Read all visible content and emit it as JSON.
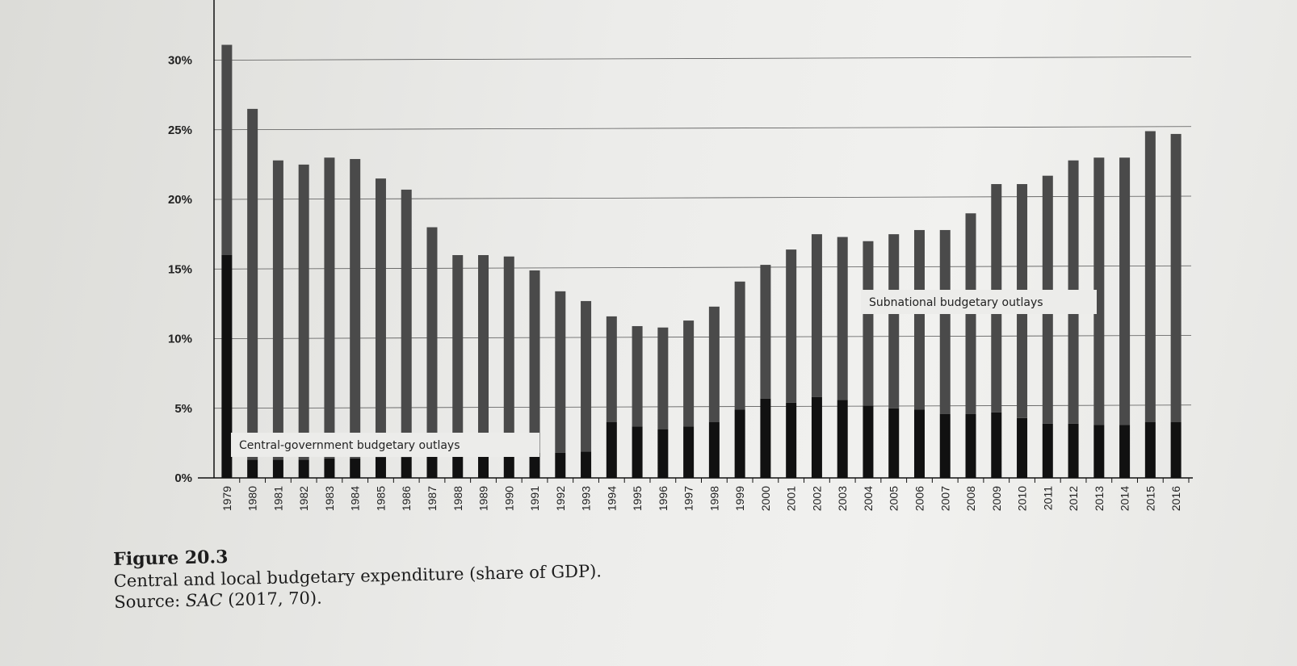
{
  "chart_data": {
    "type": "bar",
    "stacked": true,
    "categories": [
      "1979",
      "1980",
      "1981",
      "1982",
      "1983",
      "1984",
      "1985",
      "1986",
      "1987",
      "1988",
      "1989",
      "1990",
      "1991",
      "1992",
      "1993",
      "1994",
      "1995",
      "1996",
      "1997",
      "1998",
      "1999",
      "2000",
      "2001",
      "2002",
      "2003",
      "2004",
      "2005",
      "2006",
      "2007",
      "2008",
      "2009",
      "2010",
      "2011",
      "2012",
      "2013",
      "2014",
      "2015",
      "2016"
    ],
    "series": [
      {
        "name": "Central-government budgetary outlays",
        "color": "#111111",
        "values": [
          16.0,
          1.3,
          1.3,
          1.3,
          1.4,
          1.4,
          1.5,
          1.5,
          1.6,
          1.6,
          1.7,
          1.7,
          1.8,
          1.8,
          1.9,
          4.0,
          3.7,
          3.5,
          3.7,
          4.0,
          4.9,
          5.7,
          5.4,
          5.8,
          5.6,
          5.2,
          5.0,
          4.9,
          4.6,
          4.6,
          4.7,
          4.3,
          3.9,
          3.9,
          3.8,
          3.8,
          4.0,
          4.0
        ]
      },
      {
        "name": "Subnational budgetary outlays",
        "color": "#4a4a4a",
        "values": [
          15.1,
          25.2,
          21.5,
          21.2,
          21.6,
          21.5,
          20.0,
          19.2,
          16.4,
          14.4,
          14.3,
          14.2,
          13.1,
          11.6,
          10.8,
          7.6,
          7.2,
          7.3,
          7.6,
          8.3,
          9.2,
          9.6,
          11.0,
          11.7,
          11.7,
          11.8,
          12.5,
          12.9,
          13.2,
          14.4,
          16.4,
          16.8,
          17.8,
          18.9,
          19.2,
          19.2,
          20.9,
          20.7
        ]
      }
    ],
    "yticks": [
      "0%",
      "5%",
      "10%",
      "15%",
      "20%",
      "25%",
      "30%"
    ],
    "ylim": [
      0,
      32
    ],
    "grid": true
  },
  "caption": {
    "label": "Figure 20.3",
    "title": "Central and local budgetary expenditure (share of GDP).",
    "source_prefix": "Source: ",
    "source_italic": "SAC",
    "source_suffix": " (2017, 70)."
  }
}
